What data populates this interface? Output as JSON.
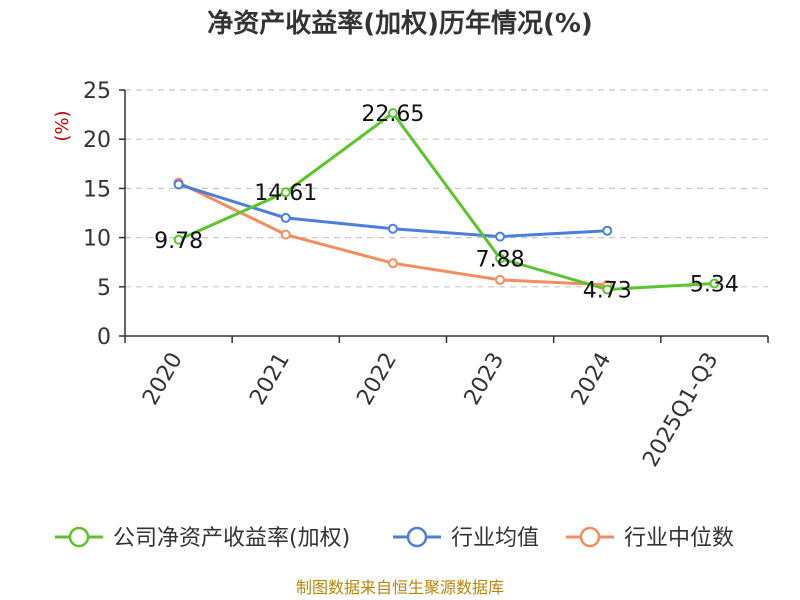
{
  "chart_data": {
    "type": "line",
    "title": "净资产收益率(加权)历年情况(%)",
    "ylabel": "(%)",
    "xlabel": "",
    "categories": [
      "2020",
      "2021",
      "2022",
      "2023",
      "2024",
      "2025Q1-Q3"
    ],
    "ylim": [
      0,
      25
    ],
    "yticks": [
      0,
      5,
      10,
      15,
      20,
      25
    ],
    "grid": true,
    "legend_position": "bottom",
    "series": [
      {
        "name": "公司净资产收益率(加权)",
        "color": "#5cc42c",
        "values": [
          9.78,
          14.61,
          22.65,
          7.88,
          4.73,
          5.34
        ],
        "labels": [
          "9.78",
          "14.61",
          "22.65",
          "7.88",
          "4.73",
          "5.34"
        ]
      },
      {
        "name": "行业均值",
        "color": "#4a7fdb",
        "values": [
          15.4,
          12.0,
          10.9,
          10.1,
          10.7,
          null
        ]
      },
      {
        "name": "行业中位数",
        "color": "#f58e5e",
        "values": [
          15.6,
          10.3,
          7.4,
          5.7,
          5.2,
          null
        ]
      }
    ]
  },
  "source_text": "制图数据来自恒生聚源数据库"
}
